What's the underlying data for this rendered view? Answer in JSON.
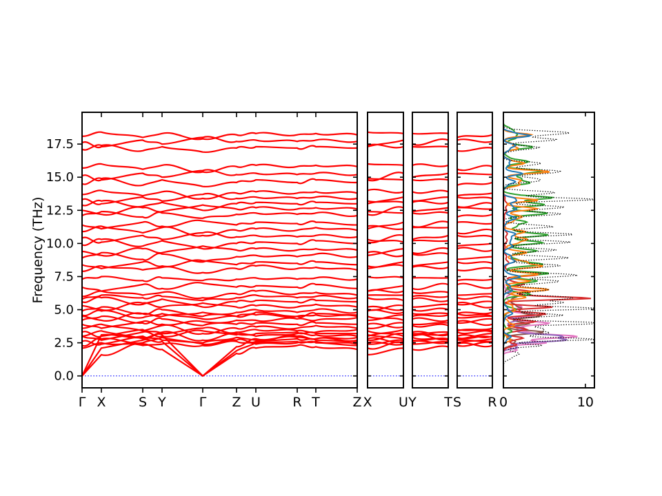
{
  "chart_data": {
    "type": "line",
    "description": "Phonon band structure (red bands) along orthorhombic high-symmetry paths with projected density of states panel",
    "ylabel": "Frequency (THz)",
    "ylim": [
      -0.9,
      19.9
    ],
    "yticks": [
      0.0,
      2.5,
      5.0,
      7.5,
      10.0,
      12.5,
      15.0,
      17.5
    ],
    "band_color": "#ff0000",
    "frame_color": "#000000",
    "zero_line": {
      "freq": 0.0,
      "color": "#0000ff",
      "style": "dotted"
    },
    "main_panel": {
      "kpoint_labels": [
        "Γ",
        "X",
        "S",
        "Y",
        "Γ",
        "Z",
        "U",
        "R",
        "T",
        "Z"
      ],
      "kpoint_positions": [
        0.0,
        0.0702,
        0.2206,
        0.2907,
        0.4386,
        0.5614,
        0.6316,
        0.782,
        0.8496,
        1.0
      ]
    },
    "small_panels": [
      {
        "left_label": "X",
        "right_label": "U",
        "node_indices": [
          1,
          6
        ]
      },
      {
        "left_label": "Y",
        "right_label": "T",
        "node_indices": [
          3,
          8
        ]
      },
      {
        "left_label": "S",
        "right_label": "R",
        "node_indices": [
          2,
          7
        ]
      }
    ],
    "dos_panel": {
      "xlim": [
        0,
        11.1
      ],
      "xticks": [
        0,
        10
      ],
      "xtick_labels": [
        "0",
        "10"
      ]
    },
    "bands_thz": [
      [
        0.0,
        1.6,
        2.4,
        2.0,
        0.0,
        1.7,
        2.1,
        2.3,
        2.2,
        2.0
      ],
      [
        0.0,
        2.1,
        2.7,
        2.6,
        0.0,
        1.9,
        2.5,
        2.6,
        2.5,
        2.3
      ],
      [
        0.0,
        3.1,
        2.9,
        3.1,
        0.0,
        2.2,
        2.8,
        2.9,
        2.8,
        2.7
      ],
      [
        2.1,
        2.5,
        2.3,
        2.4,
        2.3,
        2.6,
        2.4,
        2.5,
        2.6,
        2.4
      ],
      [
        2.3,
        2.8,
        2.5,
        2.9,
        2.4,
        2.7,
        2.6,
        2.8,
        2.7,
        2.6
      ],
      [
        2.6,
        2.4,
        3.0,
        2.7,
        2.5,
        2.9,
        2.7,
        3.0,
        2.8,
        2.9
      ],
      [
        3.0,
        3.4,
        2.8,
        3.3,
        2.7,
        3.2,
        3.0,
        3.2,
        3.1,
        3.0
      ],
      [
        3.0,
        2.7,
        3.3,
        3.0,
        3.4,
        3.1,
        3.2,
        3.3,
        3.2,
        3.2
      ],
      [
        3.3,
        3.0,
        3.5,
        3.2,
        3.6,
        3.3,
        3.5,
        3.4,
        3.3,
        3.5
      ],
      [
        3.6,
        3.9,
        3.4,
        3.8,
        3.2,
        3.6,
        3.7,
        3.6,
        3.8,
        3.6
      ],
      [
        3.9,
        3.6,
        4.1,
        3.9,
        4.1,
        3.9,
        4.0,
        3.9,
        4.0,
        3.9
      ],
      [
        4.2,
        4.5,
        4.0,
        4.3,
        3.8,
        4.2,
        4.2,
        4.3,
        4.2,
        4.4
      ],
      [
        4.5,
        4.2,
        4.7,
        4.5,
        4.8,
        4.5,
        4.6,
        4.5,
        4.6,
        4.5
      ],
      [
        4.6,
        4.9,
        4.4,
        4.7,
        4.3,
        4.5,
        4.8,
        4.5,
        4.7,
        4.6
      ],
      [
        4.9,
        5.2,
        4.7,
        5.0,
        4.5,
        4.8,
        5.0,
        4.8,
        5.0,
        4.8
      ],
      [
        5.3,
        5.0,
        5.5,
        5.2,
        5.5,
        5.2,
        5.3,
        5.2,
        5.4,
        5.2
      ],
      [
        5.6,
        5.9,
        5.4,
        5.8,
        5.2,
        5.6,
        5.7,
        5.6,
        5.7,
        5.6
      ],
      [
        5.8,
        6.1,
        5.9,
        6.0,
        5.7,
        5.9,
        6.1,
        5.9,
        6.0,
        5.9
      ],
      [
        6.0,
        6.4,
        6.1,
        6.3,
        5.9,
        6.2,
        6.4,
        6.2,
        6.3,
        6.1
      ],
      [
        6.7,
        6.4,
        6.9,
        6.6,
        7.0,
        6.7,
        6.8,
        6.7,
        6.9,
        6.6
      ],
      [
        7.3,
        7.5,
        7.2,
        7.4,
        7.2,
        7.3,
        7.4,
        7.3,
        7.4,
        7.3
      ],
      [
        7.9,
        8.3,
        8.0,
        8.2,
        7.8,
        8.1,
        8.3,
        8.1,
        8.2,
        8.0
      ],
      [
        8.4,
        8.1,
        8.6,
        8.3,
        8.7,
        8.4,
        8.6,
        8.5,
        8.6,
        8.4
      ],
      [
        8.9,
        9.3,
        8.8,
        9.2,
        8.6,
        9.0,
        9.1,
        9.0,
        9.2,
        9.0
      ],
      [
        9.4,
        9.1,
        9.6,
        9.3,
        9.8,
        9.5,
        9.6,
        9.5,
        9.6,
        9.5
      ],
      [
        9.9,
        10.3,
        9.8,
        10.2,
        9.6,
        10.0,
        10.1,
        10.0,
        10.2,
        10.0
      ],
      [
        10.4,
        10.1,
        10.6,
        10.3,
        10.8,
        10.5,
        10.6,
        10.5,
        10.6,
        10.5
      ],
      [
        10.9,
        11.3,
        10.8,
        11.2,
        10.6,
        11.0,
        11.1,
        11.0,
        11.2,
        11.0
      ],
      [
        11.4,
        11.1,
        11.6,
        11.3,
        11.7,
        11.4,
        11.6,
        11.5,
        11.6,
        11.4
      ],
      [
        12.1,
        12.4,
        12.0,
        12.3,
        11.9,
        12.2,
        12.3,
        12.2,
        12.3,
        12.1
      ],
      [
        12.5,
        12.2,
        12.7,
        12.4,
        12.9,
        12.6,
        12.7,
        12.6,
        12.7,
        12.6
      ],
      [
        12.9,
        13.2,
        12.8,
        13.1,
        12.5,
        13.0,
        13.1,
        13.0,
        13.1,
        13.0
      ],
      [
        13.3,
        13.0,
        13.5,
        13.2,
        13.7,
        13.4,
        13.5,
        13.4,
        13.5,
        13.4
      ],
      [
        13.7,
        14.0,
        13.6,
        13.9,
        13.4,
        13.8,
        13.9,
        13.8,
        13.9,
        13.8
      ],
      [
        14.5,
        14.9,
        14.4,
        14.8,
        14.3,
        14.6,
        14.8,
        14.6,
        14.8,
        14.6
      ],
      [
        15.1,
        14.8,
        15.3,
        15.0,
        15.5,
        15.2,
        15.3,
        15.2,
        15.3,
        15.2
      ],
      [
        15.7,
        16.0,
        15.6,
        15.9,
        15.4,
        15.8,
        15.9,
        15.8,
        15.9,
        15.8
      ],
      [
        17.1,
        17.4,
        17.0,
        17.3,
        16.9,
        17.2,
        17.3,
        17.2,
        17.3,
        17.2
      ],
      [
        17.6,
        17.3,
        17.8,
        17.5,
        18.0,
        17.7,
        17.8,
        17.7,
        17.8,
        17.7
      ],
      [
        18.1,
        18.4,
        18.0,
        18.3,
        17.9,
        18.2,
        18.3,
        18.2,
        18.3,
        18.2
      ]
    ],
    "dos_series": [
      {
        "name": "projected-pink",
        "color": "#e377c2",
        "style": "solid",
        "peaks": [
          [
            2.0,
            0.18,
            1.8
          ],
          [
            2.55,
            0.18,
            5.5
          ],
          [
            3.05,
            0.28,
            7.8
          ],
          [
            3.9,
            0.28,
            4.8
          ],
          [
            4.6,
            0.28,
            3.0
          ],
          [
            5.3,
            0.3,
            2.0
          ],
          [
            6.2,
            0.4,
            0.8
          ]
        ]
      },
      {
        "name": "projected-brown",
        "color": "#8c564b",
        "style": "solid",
        "peaks": [
          [
            2.5,
            0.25,
            1.8
          ],
          [
            3.3,
            0.25,
            3.8
          ],
          [
            4.0,
            0.22,
            2.8
          ],
          [
            4.6,
            0.25,
            4.4
          ],
          [
            5.2,
            0.25,
            2.4
          ],
          [
            5.9,
            0.3,
            1.6
          ],
          [
            6.8,
            0.4,
            0.6
          ]
        ]
      },
      {
        "name": "projected-purple",
        "color": "#9467bd",
        "style": "solid",
        "peaks": [
          [
            2.2,
            0.18,
            1.8
          ],
          [
            2.85,
            0.28,
            9.6
          ],
          [
            3.5,
            0.25,
            2.6
          ],
          [
            4.2,
            0.3,
            1.4
          ],
          [
            5.0,
            0.3,
            0.8
          ]
        ]
      },
      {
        "name": "projected-red",
        "color": "#d62728",
        "style": "solid",
        "peaks": [
          [
            2.3,
            0.2,
            1.4
          ],
          [
            2.8,
            0.2,
            2.4
          ],
          [
            3.5,
            0.25,
            2.2
          ],
          [
            4.1,
            0.2,
            3.0
          ],
          [
            4.7,
            0.2,
            4.2
          ],
          [
            5.2,
            0.18,
            4.6
          ],
          [
            5.9,
            0.18,
            10.2
          ],
          [
            6.4,
            0.2,
            2.8
          ],
          [
            7.0,
            0.25,
            2.2
          ],
          [
            7.7,
            0.17,
            6.4
          ],
          [
            8.6,
            0.6,
            0.5
          ],
          [
            10.5,
            0.8,
            0.4
          ],
          [
            12.8,
            0.7,
            0.4
          ]
        ]
      },
      {
        "name": "projected-green",
        "color": "#2ca02c",
        "style": "solid",
        "peaks": [
          [
            3.4,
            0.3,
            0.8
          ],
          [
            5.0,
            0.3,
            1.2
          ],
          [
            6.2,
            0.28,
            2.6
          ],
          [
            7.1,
            0.25,
            3.8
          ],
          [
            7.7,
            0.2,
            4.8
          ],
          [
            8.5,
            0.3,
            4.2
          ],
          [
            9.4,
            0.3,
            3.2
          ],
          [
            10.1,
            0.25,
            3.8
          ],
          [
            10.7,
            0.25,
            4.6
          ],
          [
            11.5,
            0.3,
            2.8
          ],
          [
            12.3,
            0.28,
            4.2
          ],
          [
            13.0,
            0.22,
            5.2
          ],
          [
            13.5,
            0.2,
            5.4
          ],
          [
            14.7,
            0.3,
            3.4
          ],
          [
            15.4,
            0.22,
            5.0
          ],
          [
            16.2,
            0.3,
            2.4
          ],
          [
            17.3,
            0.28,
            2.8
          ],
          [
            18.1,
            0.25,
            2.2
          ],
          [
            18.6,
            0.2,
            1.4
          ]
        ]
      },
      {
        "name": "projected-orange",
        "color": "#ff7f0e",
        "style": "solid",
        "peaks": [
          [
            2.8,
            0.25,
            0.9
          ],
          [
            3.9,
            0.3,
            1.2
          ],
          [
            5.1,
            0.3,
            1.6
          ],
          [
            5.9,
            0.25,
            2.2
          ],
          [
            6.5,
            0.22,
            4.3
          ],
          [
            7.2,
            0.2,
            2.8
          ],
          [
            7.7,
            0.2,
            3.4
          ],
          [
            8.4,
            0.3,
            4.8
          ],
          [
            9.3,
            0.3,
            2.2
          ],
          [
            10.2,
            0.25,
            3.2
          ],
          [
            10.8,
            0.25,
            2.6
          ],
          [
            11.9,
            0.3,
            2.2
          ],
          [
            12.6,
            0.25,
            3.2
          ],
          [
            13.3,
            0.2,
            3.6
          ],
          [
            14.6,
            0.3,
            2.6
          ],
          [
            15.4,
            0.22,
            4.4
          ],
          [
            16.1,
            0.25,
            2.2
          ],
          [
            17.3,
            0.3,
            1.8
          ],
          [
            18.2,
            0.22,
            2.6
          ]
        ]
      },
      {
        "name": "projected-blue",
        "color": "#1f77b4",
        "style": "solid",
        "peaks": [
          [
            2.9,
            0.3,
            0.8
          ],
          [
            4.8,
            0.4,
            0.9
          ],
          [
            6.6,
            0.3,
            1.2
          ],
          [
            7.5,
            0.3,
            1.6
          ],
          [
            8.8,
            0.35,
            1.4
          ],
          [
            9.9,
            0.3,
            1.2
          ],
          [
            10.6,
            0.3,
            1.5
          ],
          [
            11.9,
            0.35,
            1.2
          ],
          [
            12.7,
            0.25,
            1.8
          ],
          [
            13.3,
            0.2,
            2.2
          ],
          [
            14.6,
            0.3,
            1.2
          ],
          [
            15.3,
            0.25,
            1.8
          ],
          [
            16.1,
            0.3,
            1.0
          ],
          [
            17.3,
            0.3,
            1.4
          ],
          [
            18.2,
            0.22,
            3.2
          ]
        ]
      },
      {
        "name": "total-dos",
        "color": "#000000",
        "style": "dotted",
        "peaks": [
          [
            1.6,
            0.35,
            1.8
          ],
          [
            2.3,
            0.18,
            4.0
          ],
          [
            2.75,
            0.16,
            10.8
          ],
          [
            3.2,
            0.2,
            6.0
          ],
          [
            3.6,
            0.2,
            5.0
          ],
          [
            4.0,
            0.18,
            10.8
          ],
          [
            4.6,
            0.2,
            6.5
          ],
          [
            5.1,
            0.17,
            10.5
          ],
          [
            5.5,
            0.18,
            7.0
          ],
          [
            5.9,
            0.18,
            10.3
          ],
          [
            6.5,
            0.2,
            6.5
          ],
          [
            7.1,
            0.2,
            7.5
          ],
          [
            7.6,
            0.17,
            10.8
          ],
          [
            8.3,
            0.2,
            6.5
          ],
          [
            8.9,
            0.2,
            7.0
          ],
          [
            9.5,
            0.2,
            5.5
          ],
          [
            10.1,
            0.2,
            7.0
          ],
          [
            10.7,
            0.2,
            7.5
          ],
          [
            11.3,
            0.2,
            5.5
          ],
          [
            12.2,
            0.2,
            6.5
          ],
          [
            12.7,
            0.2,
            7.5
          ],
          [
            13.3,
            0.18,
            10.8
          ],
          [
            13.8,
            0.2,
            6.5
          ],
          [
            14.8,
            0.22,
            5.5
          ],
          [
            15.4,
            0.2,
            8.2
          ],
          [
            16.0,
            0.2,
            5.0
          ],
          [
            17.2,
            0.22,
            4.0
          ],
          [
            17.8,
            0.2,
            5.5
          ],
          [
            18.3,
            0.25,
            7.5
          ]
        ]
      }
    ]
  }
}
